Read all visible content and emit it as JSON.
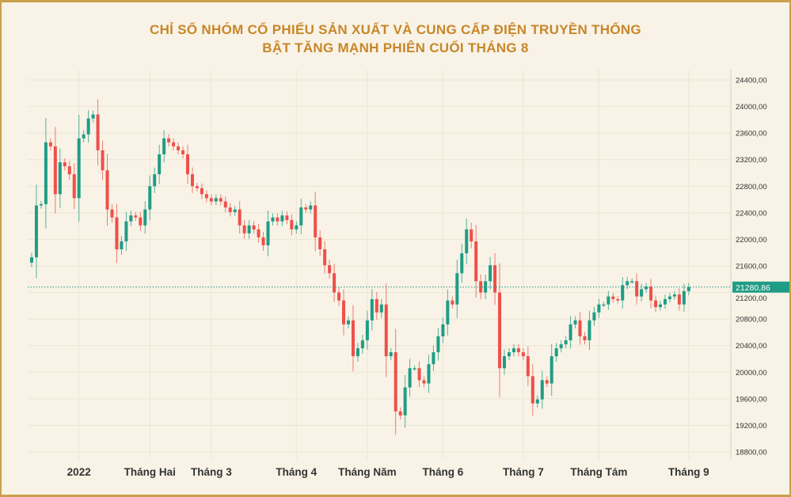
{
  "chart_data": {
    "type": "candlestick",
    "title_lines": [
      "CHỈ SỐ NHÓM CỔ PHIẾU SẢN XUẤT VÀ CUNG CẤP ĐIỆN TRUYỀN THỐNG",
      "BẬT TĂNG MẠNH PHIÊN CUỐI THÁNG 8"
    ],
    "ylim": [
      18700,
      24550
    ],
    "y_ticks": [
      24400,
      24000,
      23600,
      23200,
      22800,
      22400,
      22000,
      21600,
      21200,
      20800,
      20400,
      20000,
      19600,
      19200,
      18800
    ],
    "y_tick_labels": [
      "24400,00",
      "24000,00",
      "23600,00",
      "23200,00",
      "22800,00",
      "22400,00",
      "22000,00",
      "21600,00",
      "21200,00",
      "20800,00",
      "20400,00",
      "20000,00",
      "19600,00",
      "19200,00",
      "18800,00"
    ],
    "x_ticks": [
      {
        "label": "2022",
        "index": 10
      },
      {
        "label": "Tháng Hai",
        "index": 25
      },
      {
        "label": "Tháng 3",
        "index": 38
      },
      {
        "label": "Tháng 4",
        "index": 56
      },
      {
        "label": "Tháng Năm",
        "index": 71
      },
      {
        "label": "Tháng 6",
        "index": 87
      },
      {
        "label": "Tháng 7",
        "index": 104
      },
      {
        "label": "Tháng Tám",
        "index": 120
      },
      {
        "label": "Tháng 9",
        "index": 139
      }
    ],
    "first_open": 21650,
    "close": [
      21730,
      22510,
      22530,
      23460,
      23400,
      22680,
      23160,
      23100,
      22980,
      22620,
      23520,
      23580,
      23820,
      23880,
      23340,
      23040,
      22450,
      22330,
      21850,
      21970,
      22270,
      22360,
      22330,
      22210,
      22450,
      22800,
      22980,
      23280,
      23520,
      23460,
      23400,
      23340,
      23280,
      22980,
      22800,
      22770,
      22680,
      22620,
      22570,
      22620,
      22570,
      22480,
      22410,
      22450,
      22210,
      22090,
      22210,
      22150,
      22030,
      21910,
      22270,
      22330,
      22270,
      22360,
      22290,
      22150,
      22210,
      22480,
      22450,
      22510,
      22030,
      21850,
      21610,
      21490,
      21200,
      21080,
      20720,
      20780,
      20240,
      20360,
      20480,
      20780,
      21100,
      20900,
      21020,
      20240,
      20300,
      19410,
      19350,
      19770,
      20060,
      20060,
      19880,
      19830,
      20120,
      20300,
      20540,
      20720,
      21080,
      21020,
      21490,
      21790,
      22150,
      21970,
      21370,
      21200,
      21370,
      21610,
      21200,
      20060,
      20240,
      20300,
      20360,
      20300,
      20240,
      19940,
      19530,
      19590,
      19880,
      19830,
      20240,
      20360,
      20420,
      20480,
      20720,
      20780,
      20540,
      20480,
      20780,
      20900,
      21020,
      21020,
      21140,
      21100,
      21080,
      21310,
      21370,
      21370,
      21140,
      21250,
      21290,
      21080,
      20980,
      21020,
      21100,
      21140,
      21170,
      21020,
      21220,
      21280.86
    ],
    "last_price_label": "21280,86",
    "up_color": "#1f9c85",
    "down_color": "#ef4f4a",
    "grid": true
  }
}
